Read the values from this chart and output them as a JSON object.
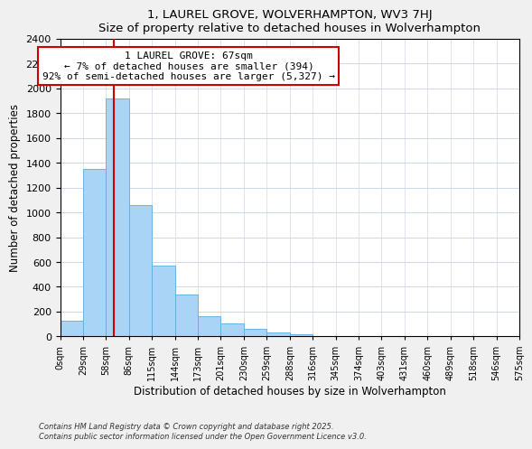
{
  "title": "1, LAUREL GROVE, WOLVERHAMPTON, WV3 7HJ",
  "subtitle": "Size of property relative to detached houses in Wolverhampton",
  "xlabel": "Distribution of detached houses by size in Wolverhampton",
  "ylabel": "Number of detached properties",
  "xlabels": [
    "0sqm",
    "29sqm",
    "58sqm",
    "86sqm",
    "115sqm",
    "144sqm",
    "173sqm",
    "201sqm",
    "230sqm",
    "259sqm",
    "288sqm",
    "316sqm",
    "345sqm",
    "374sqm",
    "403sqm",
    "431sqm",
    "460sqm",
    "489sqm",
    "518sqm",
    "546sqm",
    "575sqm"
  ],
  "bar_values": [
    125,
    1350,
    1920,
    1060,
    570,
    335,
    165,
    105,
    60,
    30,
    15,
    0,
    0,
    0,
    0,
    0,
    0,
    0,
    0,
    0
  ],
  "bar_color": "#aad4f5",
  "bar_edge_color": "#5baee0",
  "vline_color": "#cc0000",
  "ylim": [
    0,
    2400
  ],
  "yticks": [
    0,
    200,
    400,
    600,
    800,
    1000,
    1200,
    1400,
    1600,
    1800,
    2000,
    2200,
    2400
  ],
  "annotation_title": "1 LAUREL GROVE: 67sqm",
  "annotation_line1": "← 7% of detached houses are smaller (394)",
  "annotation_line2": "92% of semi-detached houses are larger (5,327) →",
  "footer1": "Contains HM Land Registry data © Crown copyright and database right 2025.",
  "footer2": "Contains public sector information licensed under the Open Government Licence v3.0.",
  "background_color": "#f0f0f0",
  "plot_background_color": "#ffffff",
  "grid_color": "#d0d8e8"
}
